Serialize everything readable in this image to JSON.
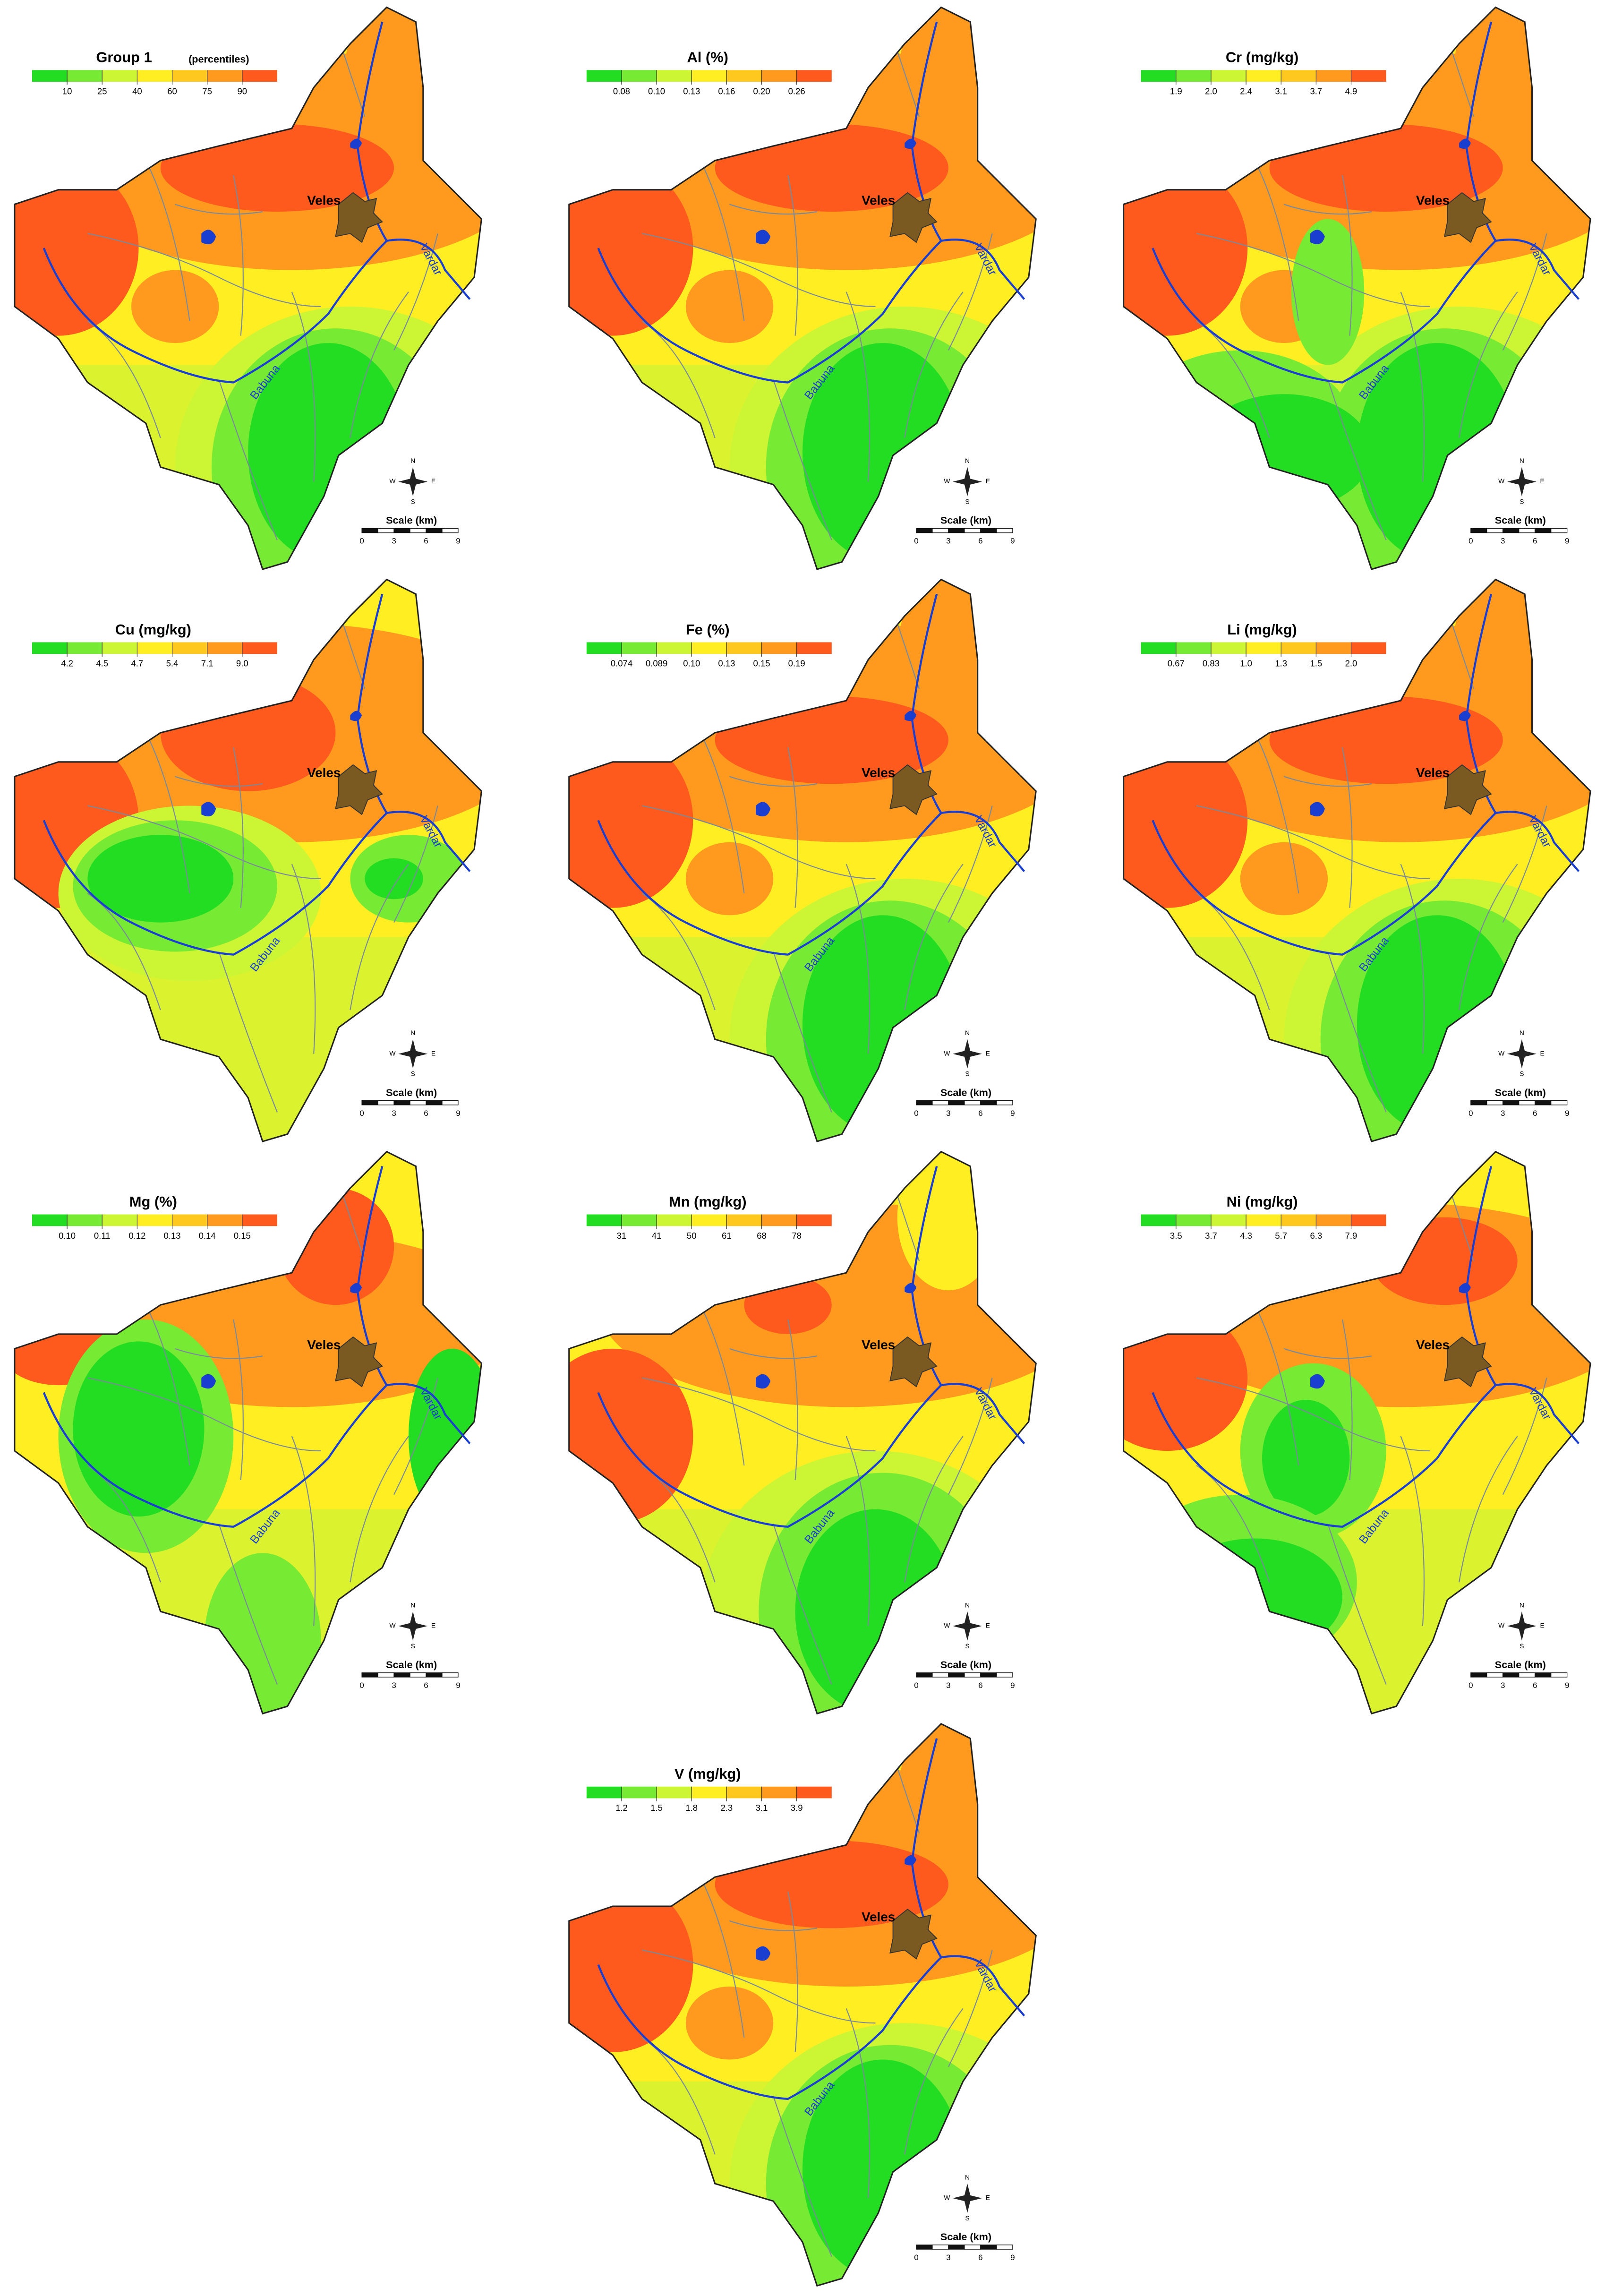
{
  "maps": [
    {
      "title": "Group 1",
      "title_note": "(percentiles)",
      "legend_labels": [
        "10",
        "25",
        "40",
        "60",
        "75",
        "90"
      ]
    },
    {
      "title": "Al (%)",
      "legend_labels": [
        "0.08",
        "0.10",
        "0.13",
        "0.16",
        "0.20",
        "0.26"
      ]
    },
    {
      "title": "Cr (mg/kg)",
      "legend_labels": [
        "1.9",
        "2.0",
        "2.4",
        "3.1",
        "3.7",
        "4.9"
      ]
    },
    {
      "title": "Cu (mg/kg)",
      "legend_labels": [
        "4.2",
        "4.5",
        "4.7",
        "5.4",
        "7.1",
        "9.0"
      ]
    },
    {
      "title": "Fe (%)",
      "legend_labels": [
        "0.074",
        "0.089",
        "0.10",
        "0.13",
        "0.15",
        "0.19"
      ]
    },
    {
      "title": "Li (mg/kg)",
      "legend_labels": [
        "0.67",
        "0.83",
        "1.0",
        "1.3",
        "1.5",
        "2.0"
      ]
    },
    {
      "title": "Mg (%)",
      "legend_labels": [
        "0.10",
        "0.11",
        "0.12",
        "0.13",
        "0.14",
        "0.15"
      ]
    },
    {
      "title": "Mn (mg/kg)",
      "legend_labels": [
        "31",
        "41",
        "50",
        "61",
        "68",
        "78"
      ]
    },
    {
      "title": "Ni (mg/kg)",
      "legend_labels": [
        "3.5",
        "3.7",
        "4.3",
        "5.7",
        "6.3",
        "7.9"
      ]
    },
    {
      "title": "V (mg/kg)",
      "legend_labels": [
        "1.2",
        "1.5",
        "1.8",
        "2.3",
        "3.1",
        "3.9"
      ]
    }
  ],
  "legend_colors": [
    "#22dd22",
    "#77ea33",
    "#ccf533",
    "#ffee22",
    "#ffc81e",
    "#ff9a1e",
    "#ff5a1e"
  ],
  "places": {
    "city": "Veles",
    "river_east": "Vardar",
    "river_west": "Babuna"
  },
  "scale": {
    "label": "Scale (km)",
    "ticks": [
      "0",
      "3",
      "6",
      "9"
    ]
  },
  "compass": {
    "north": "N",
    "east": "E",
    "south": "S",
    "west": "W"
  }
}
